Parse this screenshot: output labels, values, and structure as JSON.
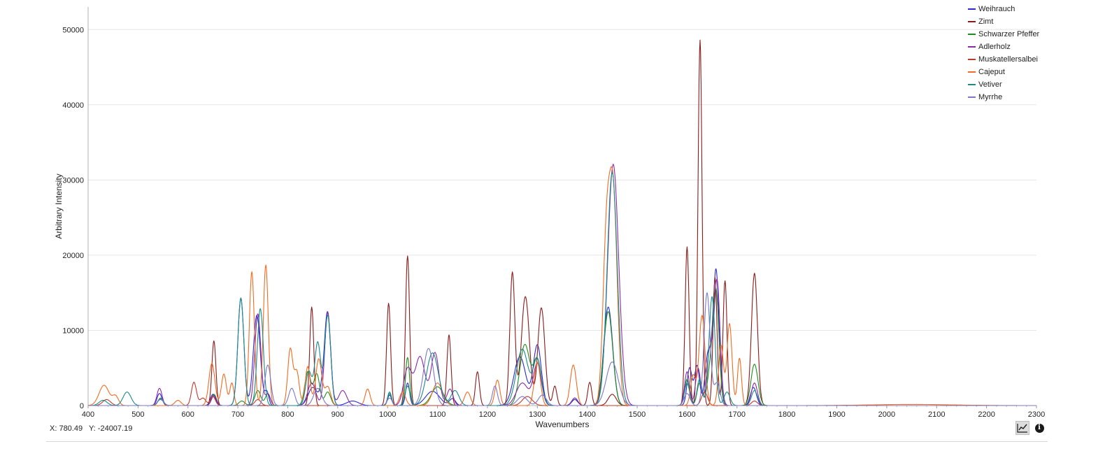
{
  "chart_data": {
    "type": "line",
    "title": "",
    "xlabel": "Wavenumbers",
    "ylabel": "Arbitrary Intensity",
    "xlim": [
      400,
      2300
    ],
    "ylim": [
      0,
      53000
    ],
    "x_ticks": [
      "400",
      "500",
      "600",
      "700",
      "800",
      "900",
      "1000",
      "1100",
      "1200",
      "1300",
      "1400",
      "1500",
      "1600",
      "1700",
      "1800",
      "1900",
      "2000",
      "2100",
      "2200",
      "2300"
    ],
    "y_ticks": [
      "0",
      "10000",
      "20000",
      "30000",
      "40000",
      "50000"
    ],
    "grid": "horizontal",
    "legend_position": "top-right",
    "series": [
      {
        "name": "Weihrauch",
        "color": "#2a2ad6",
        "peaks": [
          [
            543,
            1600,
            5
          ],
          [
            650,
            1500,
            5
          ],
          [
            706,
            14300,
            6
          ],
          [
            738,
            12000,
            7
          ],
          [
            758,
            1800,
            4
          ],
          [
            850,
            2400,
            9
          ],
          [
            870,
            1900,
            6
          ],
          [
            880,
            12000,
            6
          ],
          [
            930,
            600,
            12
          ],
          [
            1004,
            1400,
            4
          ],
          [
            1040,
            3000,
            4
          ],
          [
            1090,
            1900,
            14
          ],
          [
            1130,
            900,
            6
          ],
          [
            1265,
            6500,
            12
          ],
          [
            1300,
            8000,
            8
          ],
          [
            1375,
            800,
            6
          ],
          [
            1442,
            13100,
            9
          ],
          [
            1605,
            5000,
            5
          ],
          [
            1620,
            5300,
            5
          ],
          [
            1642,
            6800,
            6
          ],
          [
            1658,
            18000,
            6
          ],
          [
            1733,
            2400,
            6
          ]
        ]
      },
      {
        "name": "Zimt",
        "color": "#8b1a1a",
        "peaks": [
          [
            652,
            8600,
            4
          ],
          [
            848,
            13100,
            4
          ],
          [
            1002,
            13600,
            4
          ],
          [
            1040,
            19900,
            4
          ],
          [
            1123,
            9400,
            4
          ],
          [
            1180,
            4500,
            4
          ],
          [
            1250,
            17700,
            5
          ],
          [
            1276,
            14500,
            8
          ],
          [
            1308,
            13000,
            7
          ],
          [
            1335,
            2600,
            4
          ],
          [
            1405,
            3100,
            4
          ],
          [
            1450,
            1500,
            8
          ],
          [
            1600,
            21100,
            4
          ],
          [
            1626,
            48600,
            4
          ],
          [
            1656,
            17000,
            4
          ],
          [
            1676,
            16600,
            4
          ],
          [
            1735,
            17600,
            6
          ]
        ]
      },
      {
        "name": "Schwarzer Pfeffer",
        "color": "#1e8c1e",
        "peaks": [
          [
            545,
            1000,
            5
          ],
          [
            652,
            1500,
            5
          ],
          [
            708,
            600,
            6
          ],
          [
            740,
            2000,
            6
          ],
          [
            760,
            1600,
            5
          ],
          [
            840,
            4500,
            6
          ],
          [
            858,
            4200,
            6
          ],
          [
            880,
            1800,
            6
          ],
          [
            1004,
            1600,
            4
          ],
          [
            1040,
            6400,
            4
          ],
          [
            1100,
            2500,
            12
          ],
          [
            1275,
            8100,
            10
          ],
          [
            1300,
            6000,
            8
          ],
          [
            1375,
            1000,
            6
          ],
          [
            1442,
            12500,
            9
          ],
          [
            1600,
            3500,
            5
          ],
          [
            1625,
            3000,
            5
          ],
          [
            1646,
            4300,
            6
          ],
          [
            1658,
            15000,
            6
          ],
          [
            1735,
            5500,
            7
          ]
        ]
      },
      {
        "name": "Adlerholz",
        "color": "#8a2aa8",
        "peaks": [
          [
            543,
            2300,
            5
          ],
          [
            652,
            1300,
            5
          ],
          [
            740,
            12200,
            6
          ],
          [
            760,
            1500,
            5
          ],
          [
            848,
            3000,
            8
          ],
          [
            880,
            12400,
            6
          ],
          [
            910,
            2000,
            8
          ],
          [
            1040,
            4800,
            8
          ],
          [
            1065,
            6500,
            10
          ],
          [
            1095,
            7000,
            8
          ],
          [
            1125,
            2200,
            6
          ],
          [
            1270,
            3000,
            12
          ],
          [
            1300,
            5500,
            8
          ],
          [
            1375,
            1000,
            6
          ],
          [
            1452,
            32100,
            11
          ],
          [
            1600,
            4500,
            5
          ],
          [
            1622,
            5000,
            5
          ],
          [
            1645,
            7000,
            6
          ],
          [
            1660,
            16500,
            6
          ],
          [
            1735,
            3000,
            6
          ]
        ]
      },
      {
        "name": "Muskatellersalbei",
        "color": "#c0392b",
        "peaks": [
          [
            437,
            800,
            8
          ],
          [
            612,
            3100,
            5
          ],
          [
            630,
            1000,
            6
          ],
          [
            650,
            1200,
            5
          ],
          [
            740,
            800,
            6
          ],
          [
            1280,
            1200,
            10
          ],
          [
            1635,
            1800,
            6
          ],
          [
            1735,
            600,
            6
          ]
        ]
      },
      {
        "name": "Cajeput",
        "color": "#f26b21",
        "peaks": [
          [
            432,
            2700,
            10
          ],
          [
            455,
            1200,
            6
          ],
          [
            580,
            700,
            6
          ],
          [
            648,
            5600,
            6
          ],
          [
            672,
            4200,
            5
          ],
          [
            688,
            3000,
            4
          ],
          [
            728,
            17800,
            5
          ],
          [
            756,
            18700,
            5
          ],
          [
            805,
            7500,
            5
          ],
          [
            818,
            4500,
            5
          ],
          [
            840,
            5200,
            5
          ],
          [
            862,
            6200,
            6
          ],
          [
            880,
            2500,
            6
          ],
          [
            960,
            2200,
            5
          ],
          [
            1030,
            1800,
            6
          ],
          [
            1100,
            3000,
            10
          ],
          [
            1160,
            1800,
            6
          ],
          [
            1220,
            3400,
            5
          ],
          [
            1300,
            5800,
            6
          ],
          [
            1372,
            5400,
            6
          ],
          [
            1438,
            20000,
            7
          ],
          [
            1452,
            27800,
            8
          ],
          [
            1612,
            4000,
            5
          ],
          [
            1630,
            12000,
            6
          ],
          [
            1668,
            8000,
            5
          ],
          [
            1685,
            10900,
            5
          ],
          [
            1705,
            6300,
            4
          ],
          [
            2050,
            150,
            80
          ]
        ]
      },
      {
        "name": "Vetiver",
        "color": "#1a8a8a",
        "peaks": [
          [
            430,
            700,
            8
          ],
          [
            478,
            1800,
            8
          ],
          [
            545,
            800,
            6
          ],
          [
            706,
            14300,
            6
          ],
          [
            745,
            12900,
            6
          ],
          [
            842,
            4500,
            6
          ],
          [
            860,
            8400,
            6
          ],
          [
            880,
            12000,
            6
          ],
          [
            1004,
            1800,
            4
          ],
          [
            1040,
            2600,
            5
          ],
          [
            1090,
            7000,
            12
          ],
          [
            1135,
            2000,
            8
          ],
          [
            1270,
            7500,
            12
          ],
          [
            1300,
            6000,
            8
          ],
          [
            1450,
            31000,
            10
          ],
          [
            1600,
            3000,
            5
          ],
          [
            1625,
            3500,
            5
          ],
          [
            1650,
            14500,
            6
          ],
          [
            1680,
            1800,
            6
          ],
          [
            1735,
            2000,
            6
          ]
        ]
      },
      {
        "name": "Myrrhe",
        "color": "#7a78c8",
        "peaks": [
          [
            545,
            900,
            6
          ],
          [
            760,
            5400,
            6
          ],
          [
            808,
            2300,
            6
          ],
          [
            860,
            2300,
            8
          ],
          [
            1004,
            1000,
            5
          ],
          [
            1082,
            7600,
            10
          ],
          [
            1215,
            2600,
            5
          ],
          [
            1270,
            1200,
            10
          ],
          [
            1310,
            1400,
            8
          ],
          [
            1450,
            5800,
            12
          ],
          [
            1600,
            1600,
            6
          ],
          [
            1640,
            15000,
            6
          ],
          [
            1660,
            3000,
            6
          ]
        ]
      }
    ]
  },
  "readout": {
    "x": "X: 780.49",
    "y": "Y: -24007.19"
  },
  "toolbar": {
    "chart_icon": "line-chart-icon",
    "info_icon": "info-icon",
    "info_glyph": "i"
  }
}
